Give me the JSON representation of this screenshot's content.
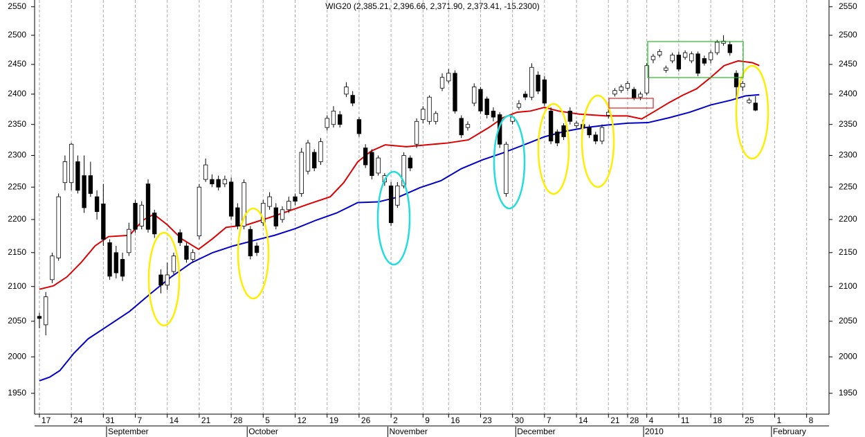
{
  "chart_data": {
    "type": "candlestick",
    "title": "WIG20 (2,385.21, 2,396.66, 2,371.90, 2,373.41, -15.2300)",
    "log_scale": true,
    "grid": true,
    "up_color": "#ffffff",
    "down_color": "#000000",
    "ylim": [
      1922,
      2562
    ],
    "yticks": [
      1950,
      2000,
      2050,
      2100,
      2150,
      2200,
      2250,
      2300,
      2350,
      2400,
      2450,
      2500,
      2550
    ],
    "xlim": [
      -0.75,
      123.5
    ],
    "xticks": [
      {
        "value": 0,
        "label": "17"
      },
      {
        "value": 5,
        "label": "24"
      },
      {
        "value": 10,
        "label": "31"
      },
      {
        "value": 15,
        "label": "7"
      },
      {
        "value": 20,
        "label": "14"
      },
      {
        "value": 25,
        "label": "21"
      },
      {
        "value": 30,
        "label": "28"
      },
      {
        "value": 35,
        "label": "5"
      },
      {
        "value": 40,
        "label": "12"
      },
      {
        "value": 45,
        "label": "19"
      },
      {
        "value": 50,
        "label": "26"
      },
      {
        "value": 55,
        "label": "2"
      },
      {
        "value": 60,
        "label": "9"
      },
      {
        "value": 64,
        "label": "16"
      },
      {
        "value": 69,
        "label": "23"
      },
      {
        "value": 74,
        "label": "30"
      },
      {
        "value": 79,
        "label": "7"
      },
      {
        "value": 84,
        "label": "14"
      },
      {
        "value": 89,
        "label": "21"
      },
      {
        "value": 92,
        "label": "28"
      },
      {
        "value": 95,
        "label": "4"
      },
      {
        "value": 100,
        "label": "11"
      },
      {
        "value": 105,
        "label": "18"
      },
      {
        "value": 110,
        "label": "25"
      },
      {
        "value": 115,
        "label": "1"
      },
      {
        "value": 120,
        "label": "8"
      }
    ],
    "months": [
      {
        "value": 11,
        "label": "September"
      },
      {
        "value": 33,
        "label": "October"
      },
      {
        "value": 55,
        "label": "November"
      },
      {
        "value": 75,
        "label": "December"
      },
      {
        "value": 95,
        "label": "2010"
      },
      {
        "value": 115,
        "label": "February"
      }
    ],
    "open": [
      2057,
      2045,
      2110,
      2142,
      2257,
      2257,
      2290,
      2268,
      2268,
      2235,
      2224,
      2165,
      2150,
      2140,
      2150,
      2225,
      2190,
      2255,
      2210,
      2117,
      2102,
      2122,
      2180,
      2160,
      2140,
      2175,
      2262,
      2262,
      2262,
      2255,
      2258,
      2218,
      2190,
      2185,
      2160,
      2195,
      2220,
      2218,
      2200,
      2215,
      2235,
      2240,
      2275,
      2305,
      2290,
      2345,
      2350,
      2366,
      2400,
      2398,
      2358,
      2312,
      2305,
      2272,
      2258,
      2252,
      2222,
      2252,
      2296,
      2318,
      2358,
      2355,
      2355,
      2410,
      2422,
      2435,
      2360,
      2345,
      2385,
      2408,
      2392,
      2372,
      2366,
      2240,
      2355,
      2378,
      2400,
      2395,
      2432,
      2424,
      2372,
      2338,
      2348,
      2372,
      2348,
      2350,
      2345,
      2333,
      2323,
      2365,
      2400,
      2406,
      2410,
      2408,
      2395,
      2402,
      2458,
      2466,
      2440,
      2456,
      2466,
      2462,
      2456,
      2468,
      2460,
      2458,
      2470,
      2486,
      2484,
      2435,
      2412,
      2386,
      2385.21
    ],
    "high": [
      2062,
      2092,
      2150,
      2240,
      2300,
      2320,
      2300,
      2300,
      2290,
      2245,
      2255,
      2170,
      2160,
      2150,
      2195,
      2230,
      2228,
      2262,
      2215,
      2125,
      2135,
      2150,
      2185,
      2165,
      2155,
      2255,
      2295,
      2270,
      2268,
      2268,
      2265,
      2225,
      2262,
      2190,
      2165,
      2230,
      2242,
      2225,
      2220,
      2235,
      2240,
      2312,
      2325,
      2310,
      2328,
      2365,
      2380,
      2372,
      2420,
      2405,
      2362,
      2318,
      2310,
      2300,
      2272,
      2258,
      2258,
      2305,
      2300,
      2360,
      2380,
      2398,
      2372,
      2435,
      2442,
      2440,
      2365,
      2355,
      2418,
      2412,
      2396,
      2378,
      2370,
      2322,
      2365,
      2390,
      2405,
      2452,
      2438,
      2430,
      2378,
      2342,
      2352,
      2378,
      2356,
      2358,
      2350,
      2338,
      2350,
      2375,
      2410,
      2416,
      2422,
      2412,
      2404,
      2452,
      2468,
      2476,
      2448,
      2470,
      2472,
      2474,
      2472,
      2472,
      2465,
      2474,
      2492,
      2500,
      2490,
      2440,
      2422,
      2394,
      2396.66
    ],
    "low": [
      2040,
      2030,
      2105,
      2138,
      2245,
      2245,
      2240,
      2210,
      2235,
      2200,
      2160,
      2110,
      2112,
      2108,
      2145,
      2180,
      2185,
      2180,
      2172,
      2090,
      2095,
      2118,
      2160,
      2135,
      2135,
      2170,
      2258,
      2250,
      2245,
      2250,
      2200,
      2185,
      2185,
      2140,
      2145,
      2190,
      2215,
      2185,
      2195,
      2210,
      2222,
      2235,
      2270,
      2275,
      2285,
      2340,
      2345,
      2345,
      2395,
      2380,
      2330,
      2280,
      2262,
      2268,
      2252,
      2190,
      2218,
      2248,
      2275,
      2312,
      2352,
      2350,
      2350,
      2405,
      2418,
      2368,
      2328,
      2340,
      2380,
      2368,
      2360,
      2355,
      2312,
      2235,
      2350,
      2374,
      2390,
      2390,
      2400,
      2380,
      2318,
      2315,
      2325,
      2350,
      2344,
      2340,
      2328,
      2318,
      2318,
      2360,
      2396,
      2402,
      2405,
      2390,
      2390,
      2398,
      2452,
      2462,
      2436,
      2452,
      2438,
      2458,
      2452,
      2430,
      2448,
      2452,
      2466,
      2482,
      2465,
      2366,
      2405,
      2384,
      2371.9
    ],
    "close": [
      2054,
      2085,
      2145,
      2235,
      2290,
      2318,
      2245,
      2218,
      2240,
      2212,
      2170,
      2115,
      2120,
      2115,
      2185,
      2185,
      2222,
      2185,
      2178,
      2102,
      2117,
      2145,
      2165,
      2140,
      2150,
      2250,
      2285,
      2255,
      2250,
      2262,
      2205,
      2190,
      2257,
      2145,
      2150,
      2225,
      2235,
      2190,
      2215,
      2228,
      2228,
      2305,
      2320,
      2280,
      2322,
      2360,
      2372,
      2350,
      2412,
      2385,
      2335,
      2285,
      2268,
      2296,
      2268,
      2195,
      2252,
      2300,
      2280,
      2355,
      2375,
      2395,
      2368,
      2428,
      2435,
      2372,
      2333,
      2350,
      2412,
      2372,
      2366,
      2362,
      2318,
      2318,
      2362,
      2384,
      2395,
      2445,
      2405,
      2385,
      2323,
      2320,
      2330,
      2355,
      2352,
      2345,
      2333,
      2323,
      2345,
      2370,
      2406,
      2412,
      2418,
      2394,
      2400,
      2448,
      2464,
      2472,
      2444,
      2466,
      2442,
      2470,
      2468,
      2435,
      2452,
      2470,
      2488,
      2490,
      2470,
      2412,
      2418,
      2390,
      2373.41
    ],
    "lines": [
      {
        "color": "#dd0000",
        "x": [
          0,
          2.2,
          4.3,
          6.5,
          8.7,
          10.8,
          14.1,
          16.2,
          17.9,
          20,
          22.2,
          24.9,
          27.1,
          29.2,
          32.5,
          35.7,
          39,
          42.2,
          45.5,
          47.6,
          49.8,
          51.9,
          54.1,
          57.4,
          60.6,
          63.9,
          67.1,
          70.3,
          72.5,
          74.7,
          76.8,
          79,
          81.2,
          84.4,
          88.7,
          92,
          94.2,
          96.3,
          98.5,
          100.6,
          102.8,
          105,
          107.1,
          109.3,
          111.5,
          112.6
        ],
        "values": [
          2096,
          2101,
          2114,
          2135,
          2160,
          2174,
          2176,
          2199,
          2208,
          2192,
          2171,
          2155,
          2171,
          2188,
          2192,
          2202,
          2213,
          2224,
          2235,
          2257,
          2290,
          2307,
          2317,
          2314,
          2317,
          2320,
          2325,
          2345,
          2361,
          2370,
          2372,
          2378,
          2372,
          2367,
          2364,
          2364,
          2359,
          2372,
          2386,
          2398,
          2409,
          2428,
          2448,
          2456,
          2453,
          2448
        ]
      },
      {
        "color": "#0000cc",
        "x": [
          0,
          1.6,
          3.2,
          5.4,
          7.6,
          10.8,
          14.1,
          17.3,
          20.6,
          23.8,
          27.1,
          30.3,
          33.5,
          36.8,
          40,
          43.3,
          46.5,
          49.8,
          53,
          56.3,
          59.5,
          62.8,
          66,
          69.3,
          72.5,
          75.8,
          79,
          82.3,
          85.5,
          88.7,
          92,
          95.2,
          98.5,
          101.7,
          105,
          108.2,
          110.4,
          112.6
        ],
        "values": [
          1967,
          1972,
          1981,
          2005,
          2025,
          2044,
          2064,
          2089,
          2114,
          2135,
          2150,
          2160,
          2168,
          2176,
          2186,
          2199,
          2210,
          2226,
          2227,
          2235,
          2249,
          2260,
          2279,
          2293,
          2304,
          2317,
          2330,
          2339,
          2345,
          2349,
          2352,
          2353,
          2361,
          2370,
          2382,
          2390,
          2397,
          2399
        ]
      }
    ]
  }
}
